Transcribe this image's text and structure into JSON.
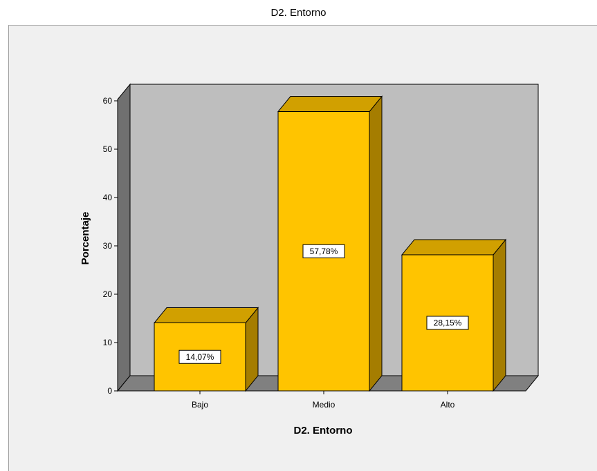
{
  "chart_data": {
    "type": "bar",
    "title": "D2. Entorno",
    "xlabel": "D2. Entorno",
    "ylabel": "Porcentaje",
    "categories": [
      "Bajo",
      "Medio",
      "Alto"
    ],
    "values": [
      14.07,
      57.78,
      28.15
    ],
    "data_labels": [
      "14,07%",
      "57,78%",
      "28,15%"
    ],
    "y_ticks": [
      "0",
      "10",
      "20",
      "30",
      "40",
      "50",
      "60"
    ],
    "ylim": [
      0,
      60
    ],
    "grid": false,
    "legend": "none",
    "colors": {
      "bar_front": "#FFC400",
      "bar_top": "#D1A000",
      "bar_side": "#A57D00",
      "wall": "#BEBEBE",
      "floor": "#808080",
      "left_wall": "#707070"
    }
  }
}
